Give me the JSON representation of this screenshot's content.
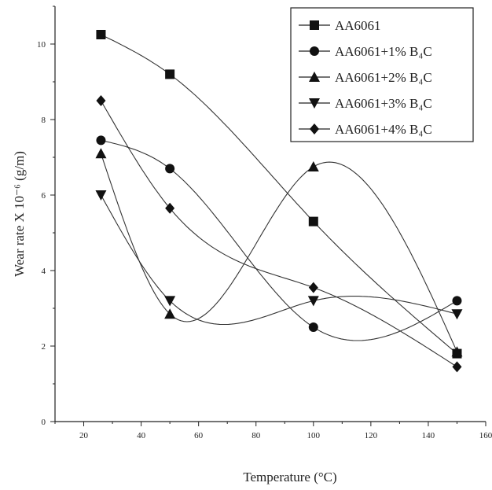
{
  "chart_data": {
    "type": "line",
    "xlabel": "Temperature (°C)",
    "ylabel": "Wear rate X 10⁻⁶ (g/m)",
    "xlim": [
      10,
      160
    ],
    "ylim": [
      0,
      11
    ],
    "xticks": [
      20,
      40,
      60,
      80,
      100,
      120,
      140,
      160
    ],
    "yticks": [
      0,
      2,
      4,
      6,
      8,
      10
    ],
    "grid": false,
    "legend_position": "top-right",
    "x": [
      26,
      50,
      100,
      150
    ],
    "series": [
      {
        "name": "AA6061",
        "marker": "square",
        "values": [
          10.25,
          9.2,
          5.3,
          1.8
        ]
      },
      {
        "name": "AA6061+1% B₄C",
        "marker": "circle",
        "values": [
          7.45,
          6.7,
          2.5,
          3.2
        ]
      },
      {
        "name": "AA6061+2% B₄C",
        "marker": "triangle-up",
        "values": [
          7.1,
          2.85,
          6.75,
          1.85
        ]
      },
      {
        "name": "AA6061+3% B₄C",
        "marker": "triangle-down",
        "values": [
          6.0,
          3.2,
          3.2,
          2.85
        ]
      },
      {
        "name": "AA6061+4% B₄C",
        "marker": "diamond",
        "values": [
          8.5,
          5.65,
          3.55,
          1.45
        ]
      }
    ]
  }
}
